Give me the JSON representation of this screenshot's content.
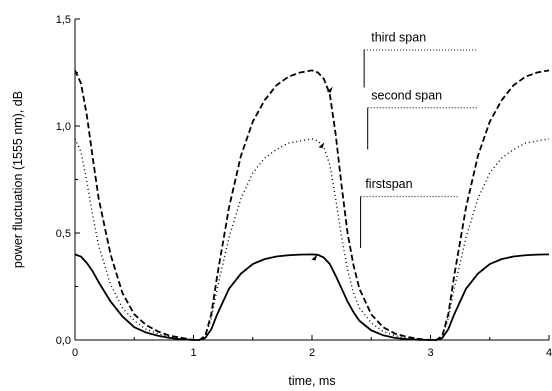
{
  "chart_data": {
    "type": "line",
    "title": "",
    "xlabel": "time, ms",
    "ylabel": "power fluctuation (1555 nm), dB",
    "xlim": [
      0,
      4
    ],
    "ylim": [
      0,
      1.5
    ],
    "x_ticks": [
      0,
      1,
      2,
      3,
      4
    ],
    "x_tick_labels": [
      "0",
      "1",
      "2",
      "3",
      "4"
    ],
    "y_ticks": [
      0,
      0.5,
      1,
      1.5
    ],
    "y_tick_labels": [
      "0,0",
      "0,5",
      "1,0",
      "1,5"
    ],
    "grid": false,
    "series": [
      {
        "name": "third span",
        "style": "dashed",
        "x": [
          0,
          0.05,
          0.1,
          0.15,
          0.2,
          0.3,
          0.4,
          0.5,
          0.6,
          0.7,
          0.8,
          0.9,
          1.0,
          1.05,
          1.1,
          1.15,
          1.2,
          1.3,
          1.4,
          1.5,
          1.6,
          1.7,
          1.8,
          1.9,
          2.0,
          2.05,
          2.1,
          2.15,
          2.2,
          2.25,
          2.3,
          2.35,
          2.4,
          2.5,
          2.6,
          2.7,
          2.8,
          2.9,
          3.0,
          3.05,
          3.1,
          3.15,
          3.2,
          3.3,
          3.4,
          3.5,
          3.6,
          3.7,
          3.8,
          3.9,
          4.0
        ],
        "y": [
          1.26,
          1.2,
          1.05,
          0.85,
          0.66,
          0.4,
          0.22,
          0.12,
          0.07,
          0.04,
          0.02,
          0.01,
          0.0,
          0.0,
          0.02,
          0.12,
          0.3,
          0.62,
          0.86,
          1.02,
          1.12,
          1.19,
          1.23,
          1.25,
          1.26,
          1.25,
          1.22,
          1.15,
          0.96,
          0.72,
          0.5,
          0.35,
          0.24,
          0.12,
          0.06,
          0.03,
          0.015,
          0.005,
          0.0,
          0.0,
          0.02,
          0.12,
          0.3,
          0.62,
          0.86,
          1.02,
          1.12,
          1.19,
          1.23,
          1.25,
          1.26
        ]
      },
      {
        "name": "second span",
        "style": "dotted",
        "x": [
          0,
          0.05,
          0.1,
          0.15,
          0.2,
          0.3,
          0.4,
          0.5,
          0.6,
          0.7,
          0.8,
          0.9,
          1.0,
          1.05,
          1.1,
          1.15,
          1.2,
          1.3,
          1.4,
          1.5,
          1.6,
          1.7,
          1.8,
          1.9,
          2.0,
          2.05,
          2.1,
          2.15,
          2.2,
          2.25,
          2.3,
          2.35,
          2.4,
          2.5,
          2.6,
          2.7,
          2.8,
          2.9,
          3.0,
          3.05,
          3.1,
          3.15,
          3.2,
          3.3,
          3.4,
          3.5,
          3.6,
          3.7,
          3.8,
          3.9,
          4.0
        ],
        "y": [
          0.94,
          0.88,
          0.74,
          0.58,
          0.44,
          0.26,
          0.15,
          0.09,
          0.05,
          0.03,
          0.015,
          0.005,
          0.0,
          0.0,
          0.02,
          0.1,
          0.24,
          0.48,
          0.66,
          0.78,
          0.85,
          0.89,
          0.92,
          0.93,
          0.94,
          0.93,
          0.9,
          0.82,
          0.66,
          0.48,
          0.33,
          0.22,
          0.15,
          0.08,
          0.04,
          0.02,
          0.01,
          0.003,
          0.0,
          0.0,
          0.02,
          0.1,
          0.24,
          0.48,
          0.66,
          0.78,
          0.85,
          0.89,
          0.92,
          0.93,
          0.94
        ]
      },
      {
        "name": "first span",
        "style": "solid",
        "x": [
          0,
          0.05,
          0.1,
          0.15,
          0.2,
          0.3,
          0.4,
          0.5,
          0.6,
          0.7,
          0.8,
          0.9,
          1.0,
          1.05,
          1.1,
          1.15,
          1.2,
          1.3,
          1.4,
          1.5,
          1.6,
          1.7,
          1.8,
          1.9,
          2.0,
          2.05,
          2.1,
          2.15,
          2.2,
          2.25,
          2.3,
          2.35,
          2.4,
          2.5,
          2.6,
          2.7,
          2.8,
          2.9,
          3.0,
          3.05,
          3.1,
          3.15,
          3.2,
          3.3,
          3.4,
          3.5,
          3.6,
          3.7,
          3.8,
          3.9,
          4.0
        ],
        "y": [
          0.4,
          0.39,
          0.36,
          0.32,
          0.27,
          0.18,
          0.11,
          0.06,
          0.035,
          0.02,
          0.01,
          0.003,
          0.0,
          0.0,
          0.01,
          0.05,
          0.12,
          0.24,
          0.31,
          0.355,
          0.378,
          0.39,
          0.396,
          0.399,
          0.4,
          0.398,
          0.385,
          0.355,
          0.3,
          0.24,
          0.18,
          0.13,
          0.09,
          0.045,
          0.022,
          0.01,
          0.004,
          0.001,
          0.0,
          0.0,
          0.01,
          0.05,
          0.12,
          0.24,
          0.31,
          0.355,
          0.378,
          0.39,
          0.396,
          0.399,
          0.4
        ]
      }
    ],
    "annotations": [
      {
        "text": "third span",
        "series": "third span"
      },
      {
        "text": "second span",
        "series": "second span"
      },
      {
        "text": "firstspan",
        "series": "first span"
      }
    ]
  }
}
